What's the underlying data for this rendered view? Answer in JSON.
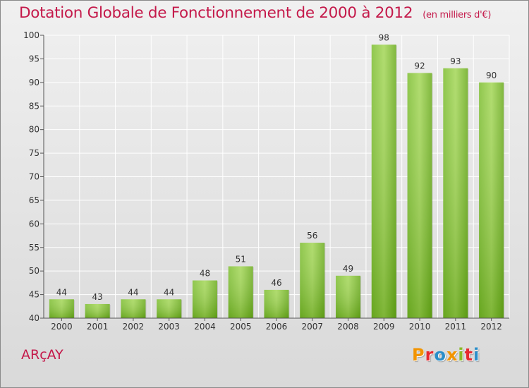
{
  "title": "Dotation Globale de Fonctionnement de 2000 à 2012",
  "unit": "(en milliers d'€)",
  "commune": "ARçAY",
  "logo_text": "Proxiti",
  "colors": {
    "title": "#c4194a",
    "bar_light": "#a3d656",
    "bar_dark": "#5e9e12",
    "grid": "#ffffff",
    "logo": [
      "#f29400",
      "#e6282e",
      "#2a8ec9",
      "#f29400",
      "#89b925",
      "#e6282e",
      "#2a8ec9"
    ]
  },
  "chart_data": {
    "type": "bar",
    "title": "Dotation Globale de Fonctionnement de 2000 à 2012",
    "subtitle": "(en milliers d'€)",
    "categories": [
      "2000",
      "2001",
      "2002",
      "2003",
      "2004",
      "2005",
      "2006",
      "2007",
      "2008",
      "2009",
      "2010",
      "2011",
      "2012"
    ],
    "values": [
      44,
      43,
      44,
      44,
      48,
      51,
      46,
      56,
      49,
      98,
      92,
      93,
      90
    ],
    "xlabel": "",
    "ylabel": "",
    "ylim": [
      40,
      100
    ],
    "yticks": [
      40,
      45,
      50,
      55,
      60,
      65,
      70,
      75,
      80,
      85,
      90,
      95,
      100
    ],
    "grid": true,
    "data_labels": true
  }
}
